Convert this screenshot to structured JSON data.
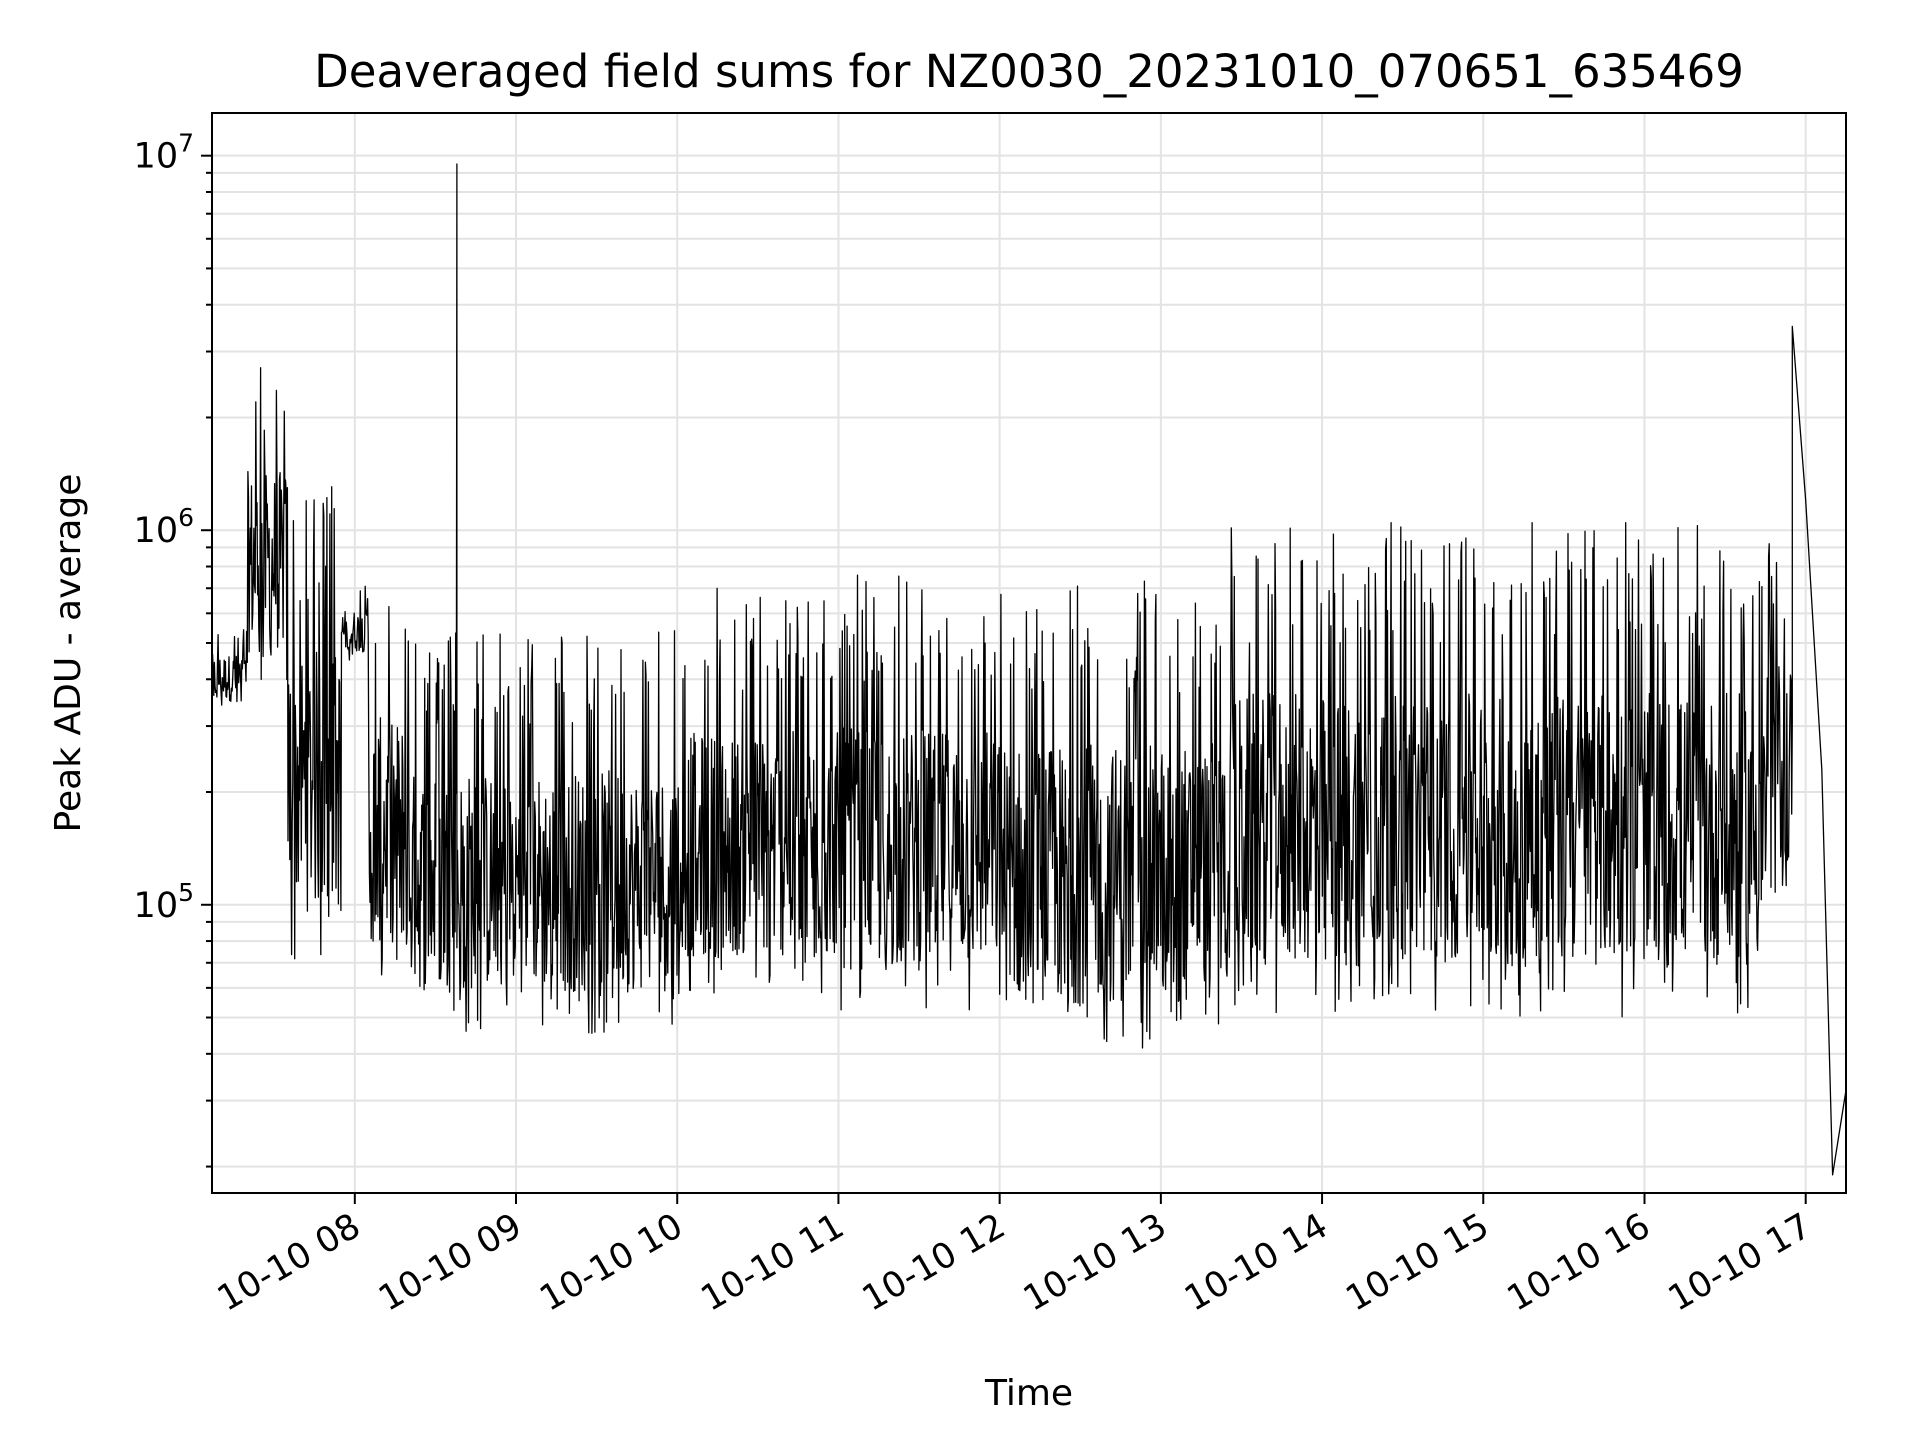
{
  "chart_data": {
    "type": "line",
    "title": "Deaveraged field sums for NZ0030_20231010_070651_635469",
    "xlabel": "Time",
    "ylabel": "Peak ADU - average",
    "yscale": "log",
    "ylim": [
      17000,
      13000000
    ],
    "xlim": [
      "2023-10-10 07:06:51",
      "2023-10-10 17:15:00"
    ],
    "grid": true,
    "line_color": "#000000",
    "x_ticks": [
      "10-10 08",
      "10-10 09",
      "10-10 10",
      "10-10 11",
      "10-10 12",
      "10-10 13",
      "10-10 14",
      "10-10 15",
      "10-10 16",
      "10-10 17"
    ],
    "y_ticks": [
      {
        "base": "10",
        "exp": "5",
        "value": 100000
      },
      {
        "base": "10",
        "exp": "6",
        "value": 1000000
      },
      {
        "base": "10",
        "exp": "7",
        "value": 10000000
      }
    ],
    "series": [
      {
        "x_start": "2023-10-10 07:06:51",
        "x_end": "2023-10-10 17:15:00",
        "points": [
          {
            "x": "2023-10-10 07:06:51",
            "y": 400000
          },
          {
            "x": "2023-10-10 07:20",
            "y": 500000
          },
          {
            "x": "2023-10-10 07:28",
            "y": 2900000
          },
          {
            "x": "2023-10-10 07:35",
            "y": 400000
          },
          {
            "x": "2023-10-10 07:45",
            "y": 150000
          },
          {
            "x": "2023-10-10 07:55",
            "y": 600000
          },
          {
            "x": "2023-10-10 08:10",
            "y": 200000
          },
          {
            "x": "2023-10-10 08:20",
            "y": 100000
          },
          {
            "x": "2023-10-10 08:38",
            "y": 9500000
          },
          {
            "x": "2023-10-10 08:40",
            "y": 100000
          },
          {
            "x": "2023-10-10 09:00",
            "y": 90000
          },
          {
            "x": "2023-10-10 09:30",
            "y": 85000
          },
          {
            "x": "2023-10-10 10:00",
            "y": 110000
          },
          {
            "x": "2023-10-10 10:30",
            "y": 120000
          },
          {
            "x": "2023-10-10 11:00",
            "y": 150000
          },
          {
            "x": "2023-10-10 11:30",
            "y": 140000
          },
          {
            "x": "2023-10-10 12:00",
            "y": 150000
          },
          {
            "x": "2023-10-10 12:30",
            "y": 110000
          },
          {
            "x": "2023-10-10 13:00",
            "y": 100000
          },
          {
            "x": "2023-10-10 13:30",
            "y": 180000
          },
          {
            "x": "2023-10-10 14:00",
            "y": 220000
          },
          {
            "x": "2023-10-10 14:30",
            "y": 220000
          },
          {
            "x": "2023-10-10 15:00",
            "y": 220000
          },
          {
            "x": "2023-10-10 15:30",
            "y": 200000
          },
          {
            "x": "2023-10-10 16:00",
            "y": 190000
          },
          {
            "x": "2023-10-10 16:30",
            "y": 170000
          },
          {
            "x": "2023-10-10 16:45",
            "y": 300000
          },
          {
            "x": "2023-10-10 16:55",
            "y": 3500000
          },
          {
            "x": "2023-10-10 17:00",
            "y": 1200000
          },
          {
            "x": "2023-10-10 17:06",
            "y": 230000
          },
          {
            "x": "2023-10-10 17:10",
            "y": 19000
          },
          {
            "x": "2023-10-10 17:15",
            "y": 32000
          }
        ],
        "noise_bands": [
          {
            "from": "2023-10-10 07:06:51",
            "to": "2023-10-10 07:20",
            "low": 330000,
            "high": 560000
          },
          {
            "from": "2023-10-10 07:20",
            "to": "2023-10-10 07:35",
            "low": 380000,
            "high": 2900000
          },
          {
            "from": "2023-10-10 07:35",
            "to": "2023-10-10 07:55",
            "low": 70000,
            "high": 1350000
          },
          {
            "from": "2023-10-10 07:55",
            "to": "2023-10-10 08:05",
            "low": 450000,
            "high": 720000
          },
          {
            "from": "2023-10-10 08:05",
            "to": "2023-10-10 08:20",
            "low": 60000,
            "high": 760000
          },
          {
            "from": "2023-10-10 08:20",
            "to": "2023-10-10 10:00",
            "low": 45000,
            "high": 540000
          },
          {
            "from": "2023-10-10 10:00",
            "to": "2023-10-10 11:00",
            "low": 55000,
            "high": 700000
          },
          {
            "from": "2023-10-10 11:00",
            "to": "2023-10-10 12:00",
            "low": 50000,
            "high": 760000
          },
          {
            "from": "2023-10-10 12:00",
            "to": "2023-10-10 13:00",
            "low": 40000,
            "high": 740000
          },
          {
            "from": "2023-10-10 13:00",
            "to": "2023-10-10 13:25",
            "low": 45000,
            "high": 700000
          },
          {
            "from": "2023-10-10 13:25",
            "to": "2023-10-10 16:45",
            "low": 50000,
            "high": 1050000
          },
          {
            "from": "2023-10-10 16:45",
            "to": "2023-10-10 16:55",
            "low": 100000,
            "high": 1000000
          }
        ]
      }
    ]
  }
}
